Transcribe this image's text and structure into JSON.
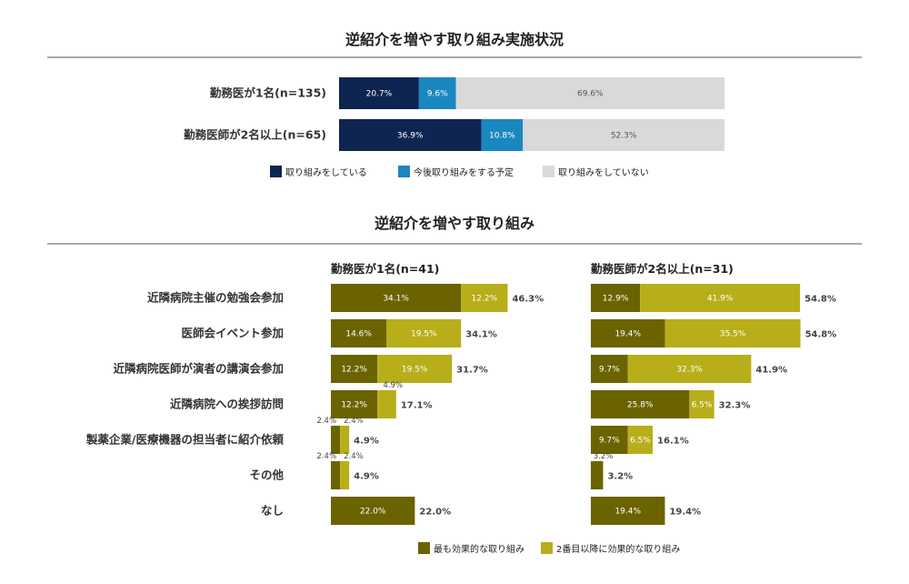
{
  "chart_data": [
    {
      "type": "bar",
      "orientation": "horizontal",
      "stacked": true,
      "title": "逆紹介を増やす取り組み実施状況",
      "categories": [
        "勤務医が1名(n=135)",
        "勤務医師が2名以上(n=65)"
      ],
      "series": [
        {
          "name": "取り組みをしている",
          "values": [
            20.7,
            36.9
          ],
          "labels": [
            "20.7%",
            "36.9%"
          ]
        },
        {
          "name": "今後取り組みをする予定",
          "values": [
            9.6,
            10.8
          ],
          "labels": [
            "9.6%",
            "10.8%"
          ]
        },
        {
          "name": "取り組みをしていない",
          "values": [
            69.6,
            52.3
          ],
          "labels": [
            "69.6%",
            "52.3%"
          ]
        }
      ],
      "legend_position": "bottom"
    },
    {
      "type": "bar",
      "orientation": "horizontal",
      "stacked": true,
      "title": "逆紹介を増やす取り組み",
      "categories": [
        "近隣病院主催の勉強会参加",
        "医師会イベント参加",
        "近隣病院医師が演者の講演会参加",
        "近隣病院への挨拶訪問",
        "製薬企業/医療機器の担当者に紹介依頼",
        "その他",
        "なし"
      ],
      "panels": [
        {
          "title": "勤務医が1名(n=41)",
          "series": [
            {
              "name": "最も効果的な取り組み",
              "values": [
                34.1,
                14.6,
                12.2,
                12.2,
                2.4,
                2.4,
                22.0
              ],
              "labels": [
                "34.1%",
                "14.6%",
                "12.2%",
                "12.2%",
                "2.4%",
                "2.4%",
                "22.0%"
              ]
            },
            {
              "name": "2番目以降に効果的な取り組み",
              "values": [
                12.2,
                19.5,
                19.5,
                4.9,
                2.4,
                2.4,
                0
              ],
              "labels": [
                "12.2%",
                "19.5%",
                "19.5%",
                "4.9%",
                "2.4%",
                "2.4%",
                ""
              ]
            }
          ],
          "totals": [
            "46.3%",
            "34.1%",
            "31.7%",
            "17.1%",
            "4.9%",
            "4.9%",
            "22.0%"
          ]
        },
        {
          "title": "勤務医師が2名以上(n=31)",
          "series": [
            {
              "name": "最も効果的な取り組み",
              "values": [
                12.9,
                19.4,
                9.7,
                25.8,
                9.7,
                3.2,
                19.4
              ],
              "labels": [
                "12.9%",
                "19.4%",
                "9.7%",
                "25.8%",
                "9.7%",
                "3.2%",
                "19.4%"
              ]
            },
            {
              "name": "2番目以降に効果的な取り組み",
              "values": [
                41.9,
                35.5,
                32.3,
                6.5,
                6.5,
                0,
                0
              ],
              "labels": [
                "41.9%",
                "35.5%",
                "32.3%",
                "6.5%",
                "6.5%",
                "",
                ""
              ]
            }
          ],
          "totals": [
            "54.8%",
            "54.8%",
            "41.9%",
            "32.3%",
            "16.1%",
            "3.2%",
            "19.4%"
          ]
        }
      ],
      "legend_position": "bottom"
    }
  ],
  "colors": {
    "implemented": "#0d2550",
    "planned": "#1a87c0",
    "not_implemented": "#d9d9d9",
    "most_effective": "#6b6300",
    "second_effective": "#b8ae1a"
  }
}
